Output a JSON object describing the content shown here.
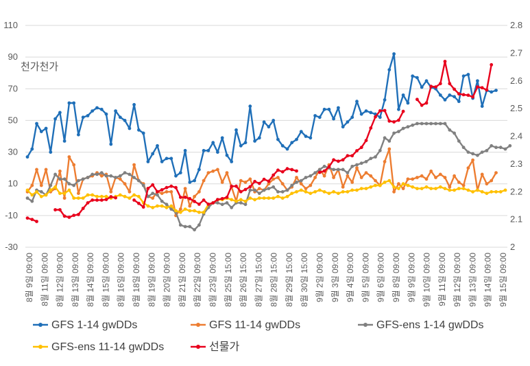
{
  "chart_data": {
    "type": "line",
    "annotation": "천가천가",
    "y_left": {
      "min": -30,
      "max": 110,
      "ticks": [
        -30,
        -10,
        10,
        30,
        50,
        70,
        90,
        110
      ]
    },
    "y_right": {
      "min": 2.0,
      "max": 2.8,
      "ticks": [
        "2",
        "2.1",
        "2.2",
        "2.3",
        "2.4",
        "2.5",
        "2.6",
        "2.7",
        "2.8"
      ]
    },
    "x_tick_labels": [
      "8월 9일 09:00",
      "8월 11일 09:00",
      "8월 12일 09:00",
      "8월 13일 09:00",
      "8월 14일 09:00",
      "8월 15일 09:00",
      "8월 16일 09:00",
      "8월 18일 09:00",
      "8월 19일 09:00",
      "8월 20일 09:00",
      "8월 21일 09:00",
      "8월 22일 09:00",
      "8월 23일 09:00",
      "8월 25일 15:00",
      "8월 26일 15:00",
      "8월 27일 15:00",
      "8월 28일 15:00",
      "8월 29일 15:00",
      "8월 30일 15:00",
      "9월 2일 09:00",
      "9월 3일 09:00",
      "9월 4일 09:00",
      "9월 5일 09:00",
      "9월 6일 09:00",
      "9월 8일 09:00",
      "9월 9일 09:00",
      "9월 10일 09:00",
      "9월 11일 09:00",
      "9월 12일 09:00",
      "9월 13일 09:00",
      "9월 14일 09:00",
      "9월 15일 09:00"
    ],
    "x_count": 104,
    "series": [
      {
        "name": "GFS 1-14 gwDDs",
        "axis": "left",
        "color": "#1f6fb8",
        "values": [
          27,
          32,
          48,
          43,
          45,
          30,
          51,
          55,
          37,
          61,
          61,
          41,
          52,
          53,
          56,
          58,
          57,
          54,
          35,
          56,
          52,
          50,
          45,
          60,
          44,
          42,
          24,
          29,
          34,
          24,
          26,
          26,
          15,
          17,
          31,
          11,
          12,
          19,
          31,
          31,
          36,
          30,
          39,
          28,
          24,
          44,
          34,
          36,
          59,
          37,
          39,
          49,
          46,
          50,
          38,
          34,
          32,
          36,
          38,
          43,
          40,
          39,
          53,
          52,
          57,
          57,
          51,
          58,
          46,
          49,
          52,
          62,
          54,
          56,
          55,
          54,
          52,
          63,
          82,
          92,
          57,
          66,
          61,
          78,
          77,
          71,
          75,
          71,
          70,
          66,
          63,
          66,
          65,
          62,
          78,
          79,
          64,
          75,
          59,
          69,
          68,
          69,
          null,
          null
        ]
      },
      {
        "name": "GFS 11-14 gwDDs",
        "axis": "left",
        "color": "#ed7d31",
        "values": [
          5,
          9,
          19,
          9,
          19,
          5,
          7,
          18,
          1,
          27,
          22,
          4,
          13,
          14,
          15,
          17,
          15,
          16,
          5,
          14,
          13,
          10,
          5,
          22,
          12,
          10,
          2,
          1,
          5,
          4,
          5,
          5,
          -10,
          -6,
          7,
          -4,
          2,
          5,
          12,
          17,
          18,
          19,
          11,
          17,
          8,
          -1,
          12,
          11,
          13,
          5,
          7,
          6,
          10,
          13,
          14,
          10,
          6,
          8,
          14,
          10,
          7,
          9,
          14,
          19,
          15,
          22,
          14,
          19,
          8,
          15,
          11,
          20,
          14,
          17,
          15,
          12,
          9,
          24,
          32,
          5,
          10,
          7,
          13,
          13,
          14,
          15,
          13,
          18,
          14,
          16,
          14,
          8,
          15,
          11,
          9,
          20,
          25,
          6,
          16,
          10,
          12,
          17,
          null,
          null
        ]
      },
      {
        "name": "GFS-ens 1-14 gwDDs",
        "axis": "left",
        "color": "#808080",
        "values": [
          1,
          -1,
          6,
          5,
          3,
          9,
          16,
          13,
          13,
          10,
          9,
          12,
          13,
          14,
          16,
          16,
          17,
          15,
          15,
          14,
          15,
          17,
          16,
          14,
          12,
          9,
          2,
          4,
          3,
          -1,
          -3,
          -6,
          -8,
          -16,
          -17,
          -17,
          -19,
          -16,
          -9,
          -5,
          -2,
          -2,
          -3,
          -2,
          -5,
          -2,
          -2,
          -3,
          6,
          6,
          4,
          6,
          7,
          8,
          5,
          5,
          6,
          9,
          11,
          12,
          14,
          15,
          17,
          19,
          21,
          20,
          19,
          19,
          19,
          17,
          21,
          22,
          23,
          24,
          26,
          27,
          31,
          39,
          37,
          42,
          43,
          45,
          46,
          47,
          48,
          48,
          48,
          48,
          48,
          48,
          48,
          44,
          42,
          37,
          33,
          30,
          29,
          28,
          30,
          31,
          34,
          33,
          33,
          32,
          34,
          null,
          null
        ]
      },
      {
        "name": "GFS-ens 11-14 gwDDs",
        "axis": "left",
        "color": "#ffc000",
        "values": [
          6,
          3,
          5,
          2,
          3,
          6,
          8,
          4,
          4,
          6,
          1,
          1,
          1,
          3,
          3,
          2,
          2,
          2,
          1,
          2,
          3,
          2,
          1,
          3,
          2,
          -2,
          -4,
          -5,
          -4,
          -4,
          -5,
          -4,
          -7,
          -8,
          -6,
          -7,
          -7,
          -8,
          -8,
          -3,
          -2,
          0,
          0,
          1,
          0,
          -1,
          0,
          -1,
          1,
          0,
          1,
          1,
          1,
          1,
          2,
          1,
          2,
          4,
          5,
          6,
          5,
          4,
          5,
          6,
          5,
          4,
          5,
          4,
          5,
          5,
          6,
          6,
          7,
          7,
          8,
          9,
          9,
          11,
          12,
          8,
          7,
          10,
          9,
          8,
          7,
          7,
          8,
          7,
          7,
          8,
          7,
          6,
          6,
          7,
          7,
          6,
          5,
          6,
          5,
          4,
          5,
          5,
          5,
          6,
          null,
          null
        ]
      },
      {
        "name": "선물가",
        "axis": "right",
        "color": "#e8001c",
        "values": [
          2.105,
          2.1,
          2.093,
          null,
          null,
          null,
          2.135,
          2.135,
          2.112,
          2.108,
          2.115,
          2.118,
          2.14,
          2.16,
          2.17,
          2.17,
          2.17,
          2.172,
          2.182,
          2.178,
          null,
          null,
          null,
          2.17,
          2.158,
          2.145,
          2.212,
          2.225,
          2.2,
          2.207,
          2.215,
          2.22,
          2.215,
          2.18,
          2.18,
          2.175,
          2.165,
          2.155,
          2.17,
          2.155,
          2.16,
          2.172,
          2.175,
          2.18,
          2.22,
          2.22,
          2.2,
          2.208,
          2.218,
          2.237,
          2.23,
          2.245,
          2.238,
          2.26,
          2.278,
          2.272,
          2.283,
          2.28,
          2.275,
          null,
          null,
          null,
          null,
          2.27,
          2.275,
          2.29,
          2.315,
          2.31,
          2.315,
          2.33,
          2.33,
          2.348,
          2.36,
          2.385,
          2.43,
          2.47,
          2.492,
          2.493,
          2.455,
          2.452,
          2.458,
          2.49,
          null,
          null,
          2.533,
          2.512,
          2.52,
          2.58,
          2.578,
          2.59,
          2.67,
          2.59,
          2.57,
          2.553,
          2.55,
          2.548,
          2.542,
          2.578,
          2.575,
          2.567,
          2.658,
          null,
          null,
          null
        ]
      }
    ]
  },
  "legend": [
    {
      "label": "GFS 1-14 gwDDs",
      "color": "#1f6fb8"
    },
    {
      "label": "GFS 11-14 gwDDs",
      "color": "#ed7d31"
    },
    {
      "label": "GFS-ens 1-14 gwDDs",
      "color": "#808080"
    },
    {
      "label": "GFS-ens 11-14 gwDDs",
      "color": "#ffc000"
    },
    {
      "label": "선물가",
      "color": "#e8001c"
    }
  ]
}
